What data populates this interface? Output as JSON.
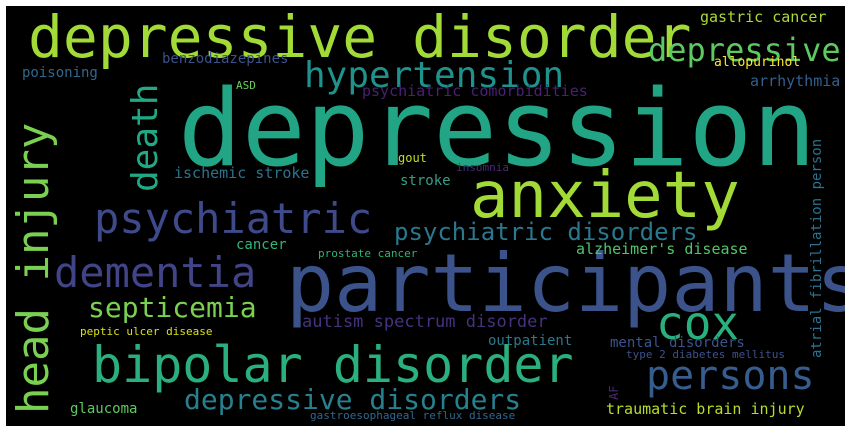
{
  "wordcloud": {
    "background": "#000000",
    "words": [
      {
        "text": "depression",
        "color": "#21a585"
      },
      {
        "text": "participants",
        "color": "#3b528b"
      },
      {
        "text": "depressive disorder",
        "color": "#a2da37"
      },
      {
        "text": "anxiety",
        "color": "#a2da37"
      },
      {
        "text": "head injury",
        "color": "#7ad151"
      },
      {
        "text": "bipolar disorder",
        "color": "#2ab07f"
      },
      {
        "text": "psychiatric",
        "color": "#3e4a89"
      },
      {
        "text": "dementia",
        "color": "#414487"
      },
      {
        "text": "hypertension",
        "color": "#20928c"
      },
      {
        "text": "death",
        "color": "#22a884"
      },
      {
        "text": "depressive",
        "color": "#5ec962"
      },
      {
        "text": "persons",
        "color": "#365d8d"
      },
      {
        "text": "cox",
        "color": "#2ab07f"
      },
      {
        "text": "septicemia",
        "color": "#7ad151"
      },
      {
        "text": "depressive disorders",
        "color": "#27808e"
      },
      {
        "text": "psychiatric disorders",
        "color": "#2a788e"
      },
      {
        "text": "autism spectrum disorder",
        "color": "#46327e"
      },
      {
        "text": "gastric cancer",
        "color": "#a8db34"
      },
      {
        "text": "benzodiazepines",
        "color": "#3b528b"
      },
      {
        "text": "poisoning",
        "color": "#31688e"
      },
      {
        "text": "psychiatric comorbidities",
        "color": "#482173"
      },
      {
        "text": "allopurinol",
        "color": "#fde725"
      },
      {
        "text": "arrhythmia",
        "color": "#355f8d"
      },
      {
        "text": "ASD",
        "color": "#6ccd5a"
      },
      {
        "text": "ischemic stroke",
        "color": "#2c728e"
      },
      {
        "text": "stroke",
        "color": "#3b9d88"
      },
      {
        "text": "gout",
        "color": "#bddf26"
      },
      {
        "text": "insomnia",
        "color": "#472c7a"
      },
      {
        "text": "alzheimer's disease",
        "color": "#52c569"
      },
      {
        "text": "cancer",
        "color": "#32b67a"
      },
      {
        "text": "prostate cancer",
        "color": "#2fb47c"
      },
      {
        "text": "atrial fibrillation person",
        "color": "#2c728e"
      },
      {
        "text": "peptic ulcer disease",
        "color": "#d8e219"
      },
      {
        "text": "outpatient",
        "color": "#2a788e"
      },
      {
        "text": "mental disorders",
        "color": "#3a548c"
      },
      {
        "text": "type 2 diabetes mellitus",
        "color": "#3b528b"
      },
      {
        "text": "AF",
        "color": "#482878"
      },
      {
        "text": "glaucoma",
        "color": "#5ec962"
      },
      {
        "text": "gastroesophageal reflux disease",
        "color": "#31688e"
      },
      {
        "text": "traumatic brain injury",
        "color": "#b5de2b"
      }
    ]
  }
}
